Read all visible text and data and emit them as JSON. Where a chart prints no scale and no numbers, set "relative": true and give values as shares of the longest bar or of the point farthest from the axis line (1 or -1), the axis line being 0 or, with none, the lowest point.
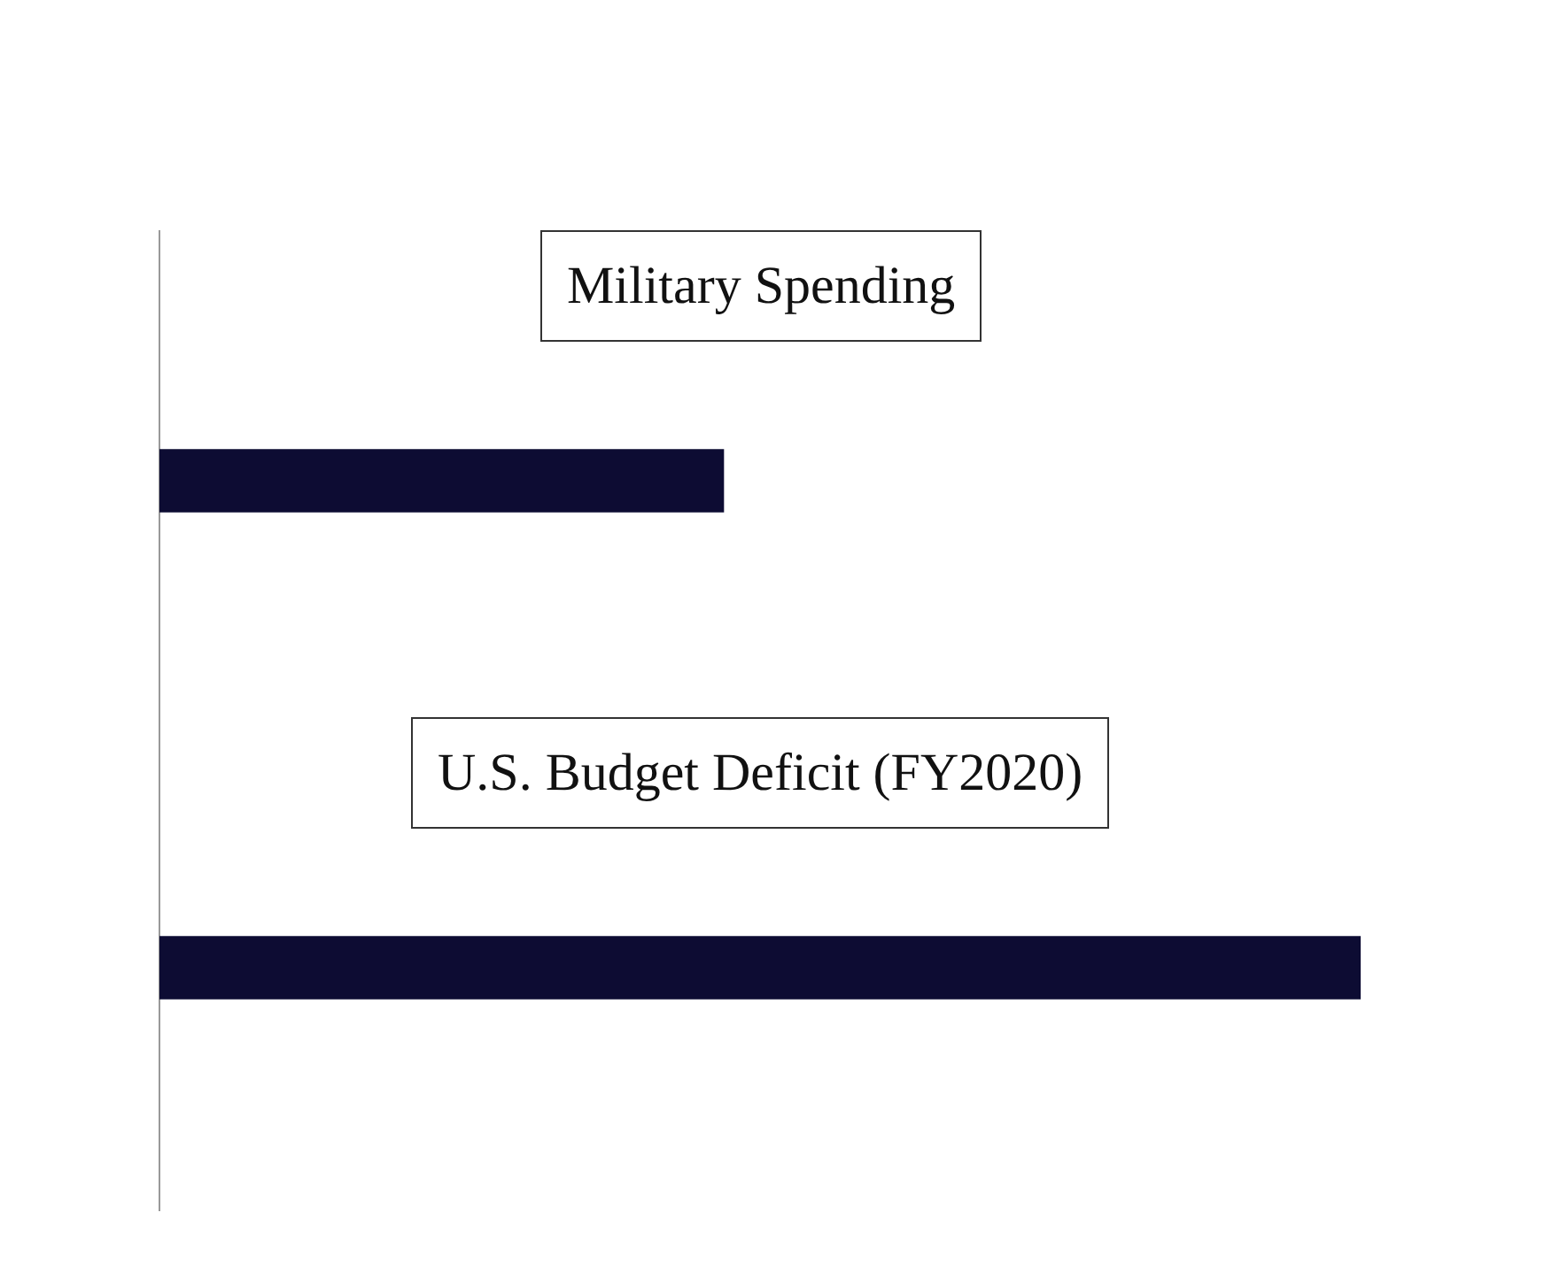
{
  "chart_data": {
    "type": "bar",
    "orientation": "horizontal",
    "relative": true,
    "categories": [
      "Military Spending",
      "U.S. Budget Deficit (FY2020)"
    ],
    "values": [
      0.47,
      1
    ],
    "color": "#0d0c33"
  }
}
